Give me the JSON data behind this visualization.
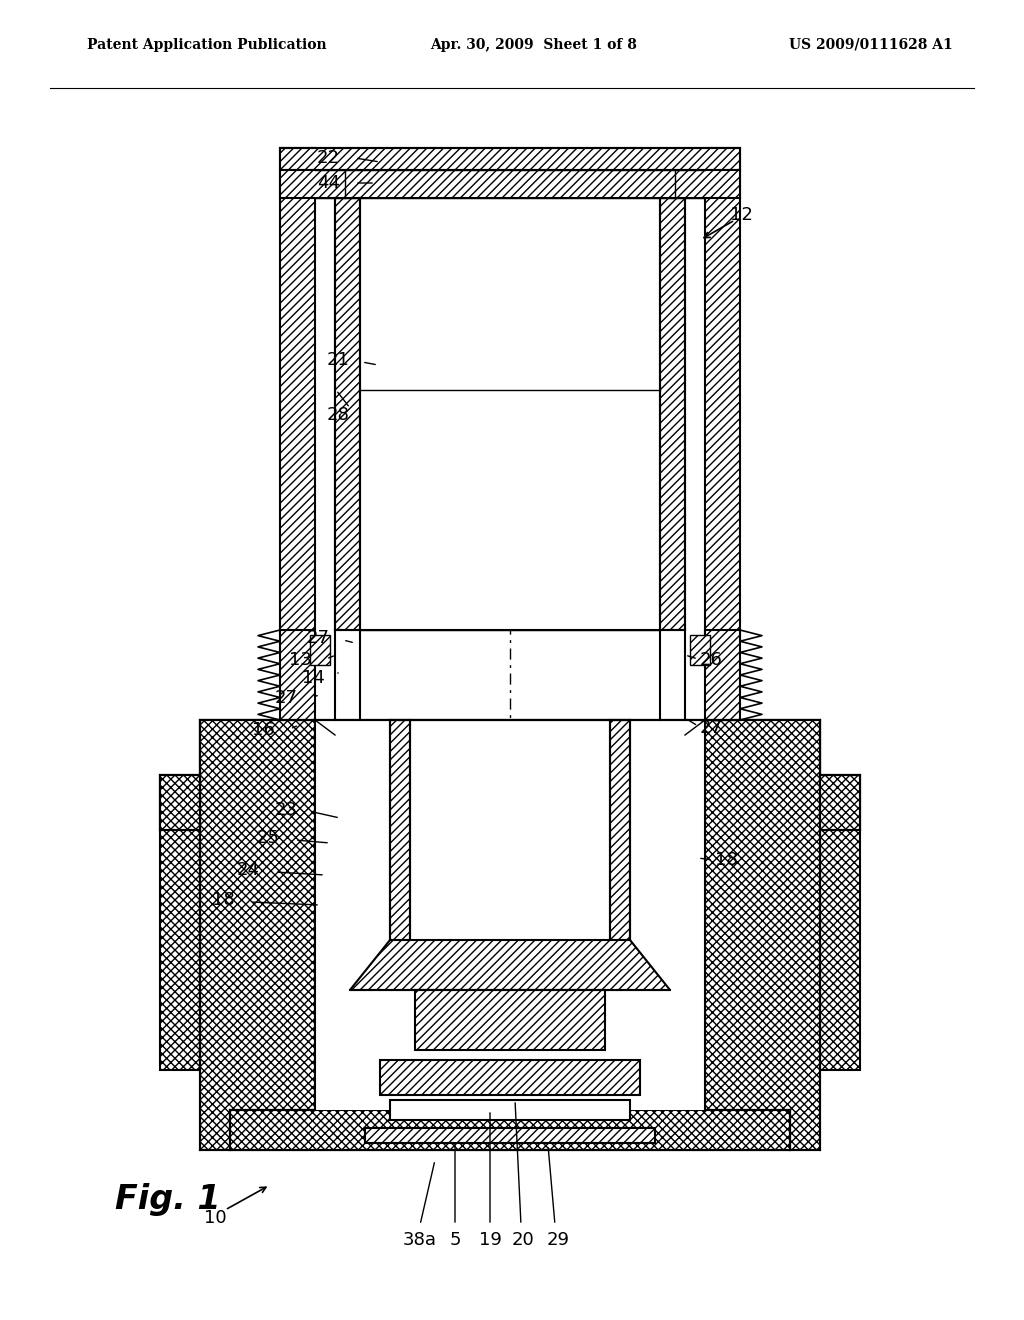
{
  "bg_color": "#ffffff",
  "line_color": "#000000",
  "header_left": "Patent Application Publication",
  "header_center": "Apr. 30, 2009  Sheet 1 of 8",
  "header_right": "US 2009/0111628 A1",
  "fig_label": "Fig. 1"
}
